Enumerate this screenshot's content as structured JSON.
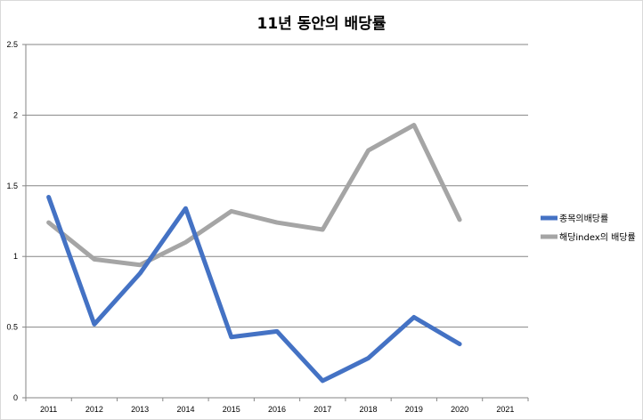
{
  "chart_data": {
    "type": "line",
    "title": "11년 동안의 배당률",
    "xlabel": "",
    "ylabel": "",
    "categories": [
      "2011",
      "2012",
      "2013",
      "2014",
      "2015",
      "2016",
      "2017",
      "2018",
      "2019",
      "2020",
      "2021"
    ],
    "ylim": [
      0,
      2.5
    ],
    "yticks": [
      "0",
      "0.5",
      "1",
      "1.5",
      "2",
      "2.5"
    ],
    "grid": true,
    "legend_position": "right",
    "series": [
      {
        "name": "종목의배당률",
        "color": "#4472c4",
        "values": [
          1.42,
          0.52,
          0.88,
          1.34,
          0.43,
          0.47,
          0.12,
          0.28,
          0.57,
          0.38,
          null
        ]
      },
      {
        "name": "해당index의 배당률",
        "color": "#a5a5a5",
        "values": [
          1.24,
          0.98,
          0.94,
          1.1,
          1.32,
          1.24,
          1.19,
          1.75,
          1.93,
          1.26,
          null
        ]
      }
    ]
  }
}
